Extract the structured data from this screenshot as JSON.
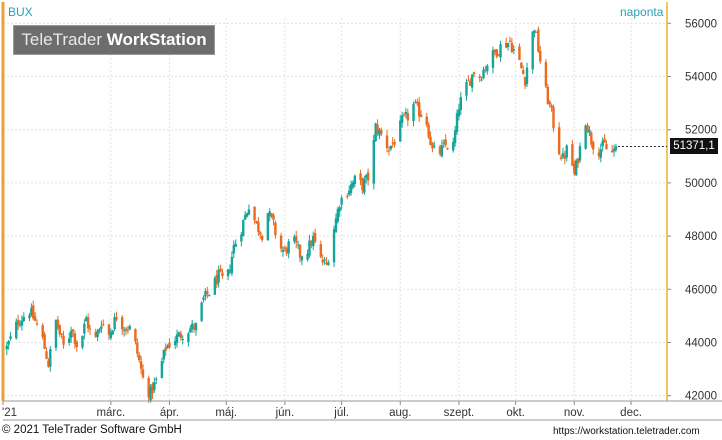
{
  "header": {
    "symbol": "BUX",
    "interval": "naponta",
    "brand_light": "TeleTrader",
    "brand_bold": "WorkStation"
  },
  "last_value_label": "51371,1",
  "footer": {
    "copyright": "© 2021  TeleTrader Software GmbH",
    "url": "https://workstation.teletrader.com"
  },
  "colors": {
    "up": "#13a59a",
    "down": "#ea6a1f",
    "axis_text": "#2b9fb4",
    "grid": "#e3e3e3",
    "axis_line": "#f0b429"
  },
  "chart_data": {
    "type": "candlestick",
    "series": [
      {
        "name": "BUX"
      }
    ],
    "ylim": [
      41800,
      56200
    ],
    "y_ticks": [
      42000,
      44000,
      46000,
      48000,
      50000,
      52000,
      54000,
      56000
    ],
    "y_tick_labels": [
      "42000",
      "44000",
      "46000",
      "48000",
      "50000",
      "52000",
      "54000",
      "56000"
    ],
    "x_ticks": [
      {
        "label": "'21",
        "day": 0
      },
      {
        "label": "márc.",
        "day": 57
      },
      {
        "label": "ápr.",
        "day": 88
      },
      {
        "label": "máj.",
        "day": 118
      },
      {
        "label": "jún.",
        "day": 149
      },
      {
        "label": "júl.",
        "day": 179
      },
      {
        "label": "aug.",
        "day": 210
      },
      {
        "label": "szept.",
        "day": 241
      },
      {
        "label": "okt.",
        "day": 271
      },
      {
        "label": "nov.",
        "day": 302
      },
      {
        "label": "dec.",
        "day": 332
      }
    ],
    "x_range_days": [
      0,
      351
    ],
    "last_value": 51371.1,
    "close_path": [
      [
        2,
        43800
      ],
      [
        8,
        44800
      ],
      [
        14,
        45200
      ],
      [
        20,
        44400
      ],
      [
        24,
        43200
      ],
      [
        28,
        44800
      ],
      [
        33,
        43600
      ],
      [
        36,
        44600
      ],
      [
        40,
        43700
      ],
      [
        44,
        44900
      ],
      [
        48,
        43900
      ],
      [
        52,
        44800
      ],
      [
        56,
        44300
      ],
      [
        60,
        45000
      ],
      [
        64,
        44600
      ],
      [
        68,
        44500
      ],
      [
        72,
        43300
      ],
      [
        75,
        42300
      ],
      [
        78,
        42100
      ],
      [
        82,
        42700
      ],
      [
        86,
        43800
      ],
      [
        90,
        44100
      ],
      [
        94,
        44300
      ],
      [
        98,
        44500
      ],
      [
        102,
        44600
      ],
      [
        106,
        45600
      ],
      [
        110,
        46000
      ],
      [
        114,
        46500
      ],
      [
        118,
        46200
      ],
      [
        122,
        47600
      ],
      [
        126,
        48300
      ],
      [
        130,
        49200
      ],
      [
        134,
        48400
      ],
      [
        137,
        48100
      ],
      [
        140,
        48900
      ],
      [
        143,
        48400
      ],
      [
        146,
        47600
      ],
      [
        149,
        47400
      ],
      [
        153,
        47900
      ],
      [
        157,
        47300
      ],
      [
        161,
        47500
      ],
      [
        164,
        47900
      ],
      [
        168,
        47100
      ],
      [
        171,
        46900
      ],
      [
        174,
        48000
      ],
      [
        178,
        49300
      ],
      [
        182,
        49700
      ],
      [
        186,
        50100
      ],
      [
        190,
        49900
      ],
      [
        194,
        50300
      ],
      [
        197,
        52100
      ],
      [
        200,
        51800
      ],
      [
        204,
        51300
      ],
      [
        208,
        51700
      ],
      [
        211,
        52300
      ],
      [
        214,
        52500
      ],
      [
        217,
        52900
      ],
      [
        221,
        52600
      ],
      [
        224,
        52300
      ],
      [
        227,
        51200
      ],
      [
        230,
        51100
      ],
      [
        234,
        51400
      ],
      [
        238,
        51400
      ],
      [
        241,
        52900
      ],
      [
        245,
        53600
      ],
      [
        249,
        54200
      ],
      [
        252,
        54000
      ],
      [
        256,
        54500
      ],
      [
        260,
        54900
      ],
      [
        264,
        55200
      ],
      [
        268,
        55300
      ],
      [
        272,
        54700
      ],
      [
        276,
        53900
      ],
      [
        279,
        55300
      ],
      [
        281,
        55900
      ],
      [
        284,
        54600
      ],
      [
        287,
        53400
      ],
      [
        290,
        52600
      ],
      [
        293,
        51400
      ],
      [
        296,
        50900
      ],
      [
        299,
        51400
      ],
      [
        302,
        50300
      ],
      [
        305,
        51300
      ],
      [
        308,
        52400
      ],
      [
        311,
        51600
      ],
      [
        314,
        51200
      ],
      [
        318,
        51400
      ],
      [
        321,
        51000
      ],
      [
        324,
        51371.1
      ]
    ]
  }
}
